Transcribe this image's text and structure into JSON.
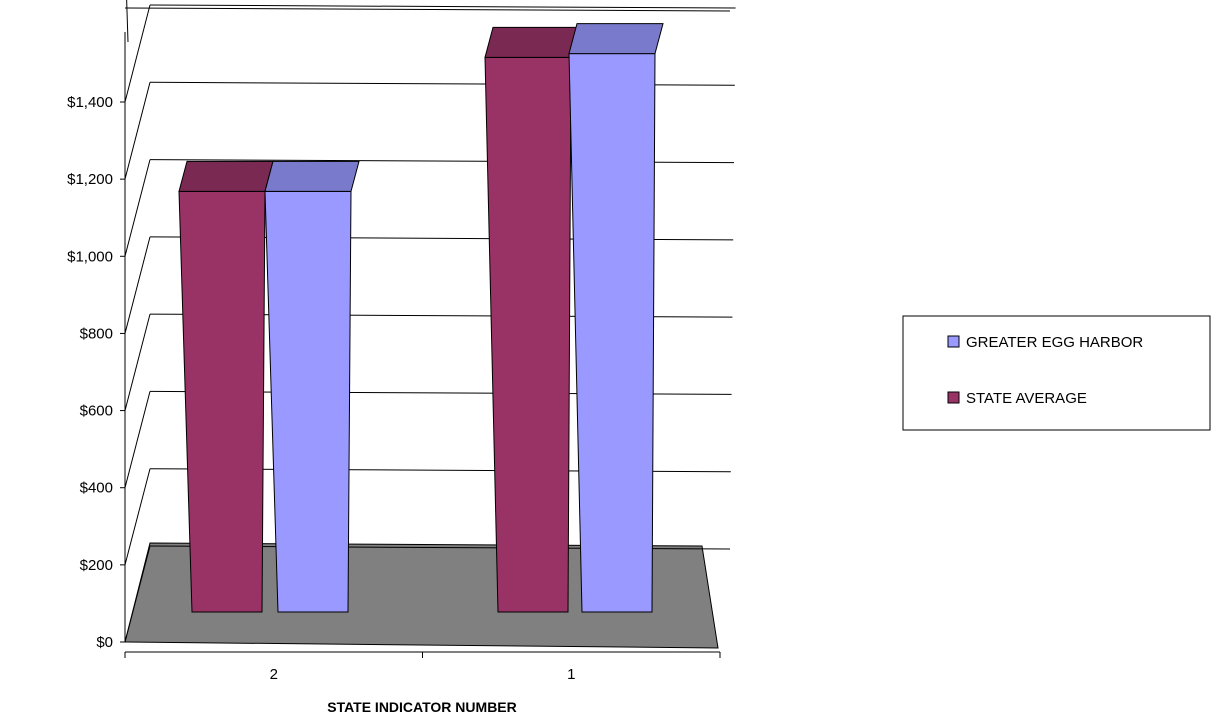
{
  "chart_data": {
    "type": "bar",
    "title": "",
    "xlabel": "STATE INDICATOR NUMBER",
    "ylabel": "",
    "categories": [
      "2",
      "1"
    ],
    "series": [
      {
        "name": "STATE AVERAGE",
        "values": [
          1115,
          1470
        ],
        "color": "#993366"
      },
      {
        "name": "GREATER EGG HARBOR",
        "values": [
          1115,
          1480
        ],
        "color": "#9999FF"
      }
    ],
    "legend_order": [
      1,
      0
    ],
    "ylim": [
      0,
      1400
    ],
    "yticks": [
      "$0",
      "$200",
      "$400",
      "$600",
      "$800",
      "$1,000",
      "$1,200",
      "$1,400"
    ],
    "grid": true,
    "legend_position": "right",
    "floor_color": "#808080",
    "style": "3d-column"
  }
}
